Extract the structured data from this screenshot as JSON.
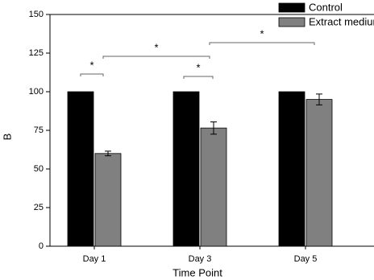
{
  "chart_data": {
    "type": "bar",
    "x_label": "Time Point",
    "y_label": "B",
    "categories": [
      "Day 1",
      "Day 3",
      "Day 5"
    ],
    "series": [
      {
        "name": "Control",
        "color": "#000000",
        "values": [
          100,
          100,
          100
        ]
      },
      {
        "name": "Extract medium",
        "color": "#808080",
        "values": [
          60,
          76.5,
          95
        ],
        "errors": [
          1.5,
          4,
          3.5
        ]
      }
    ],
    "ylim": [
      0,
      150
    ],
    "yticks": [
      0,
      25,
      50,
      75,
      100,
      125,
      150
    ],
    "legend": "top-right",
    "annotations": [
      "*",
      "*",
      "*",
      "*"
    ]
  }
}
